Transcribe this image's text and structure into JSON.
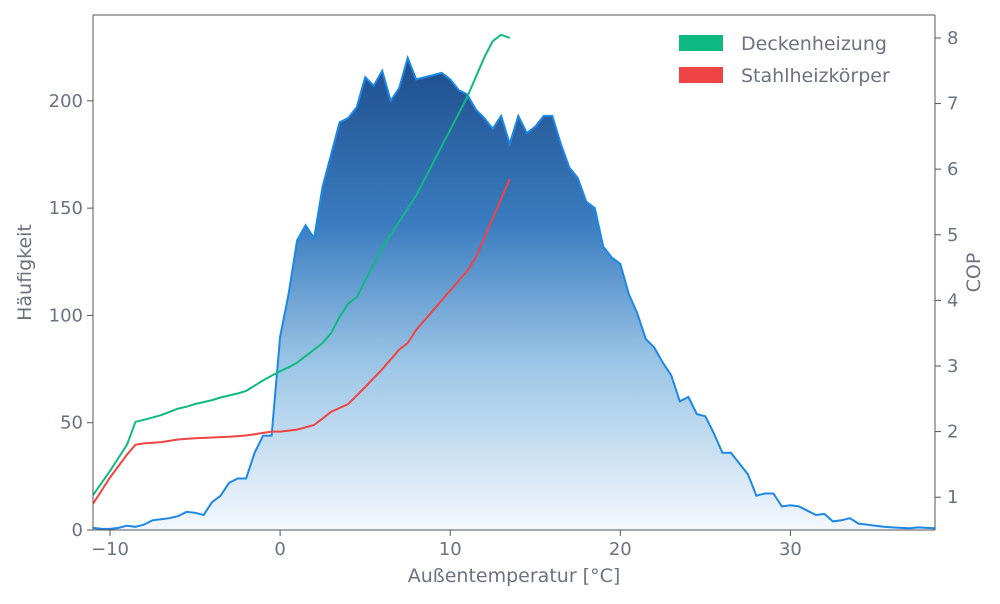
{
  "chart_data": {
    "type": "area",
    "title": "",
    "xlabel": "Außentemperatur [°C]",
    "ylabel_left": "Häufigkeit",
    "ylabel_right": "COP",
    "xlim": [
      -11,
      38.5
    ],
    "ylim_left": [
      0,
      240
    ],
    "ylim_right": [
      0.5,
      8.35
    ],
    "x_ticks": [
      -10,
      0,
      10,
      20,
      30
    ],
    "y_ticks_left": [
      0,
      50,
      100,
      150,
      200
    ],
    "y_ticks_right": [
      1,
      2,
      3,
      4,
      5,
      6,
      7,
      8
    ],
    "grid": false,
    "legend_position": "top-right",
    "colors": {
      "histogram_line": "#1e88e5",
      "histogram_fill_top": "#1f4e8c",
      "histogram_fill_bottom": "#f4f8fd",
      "deckenheizung": "#10b981",
      "stahlheizkoerper": "#ef4444",
      "axis": "#555555",
      "text": "#6b7280"
    },
    "histogram": {
      "axis": "left",
      "x": [
        -11,
        -10.5,
        -10,
        -9.5,
        -9,
        -8.5,
        -8,
        -7.5,
        -7,
        -6.5,
        -6,
        -5.5,
        -5,
        -4.5,
        -4,
        -3.5,
        -3,
        -2.5,
        -2,
        -1.5,
        -1,
        -0.5,
        0,
        0.5,
        1,
        1.5,
        2,
        2.5,
        3,
        3.5,
        4,
        4.5,
        5,
        5.5,
        6,
        6.5,
        7,
        7.5,
        8,
        8.5,
        9,
        9.5,
        10,
        10.5,
        11,
        11.5,
        12,
        12.5,
        13,
        13.5,
        14,
        14.5,
        15,
        15.5,
        16,
        16.5,
        17,
        17.5,
        18,
        18.5,
        19,
        19.5,
        20,
        20.5,
        21,
        21.5,
        22,
        22.5,
        23,
        23.5,
        24,
        24.5,
        25,
        25.5,
        26,
        26.5,
        27,
        27.5,
        28,
        28.5,
        29,
        29.5,
        30,
        30.5,
        31,
        31.5,
        32,
        32.5,
        33,
        33.5,
        34,
        34.5,
        35,
        35.5,
        36,
        36.5,
        37,
        37.5,
        38,
        38.5
      ],
      "values": [
        1,
        0.5,
        0.5,
        1,
        2,
        1.5,
        2.5,
        4.5,
        5,
        5.5,
        6.5,
        8.5,
        8,
        7,
        13,
        16,
        22,
        24,
        24,
        36,
        44,
        44,
        90,
        110,
        135,
        142,
        136,
        160,
        175,
        190,
        192,
        197,
        211,
        207,
        214,
        200,
        206,
        220,
        210,
        211,
        212,
        213,
        210,
        205,
        203,
        196,
        192,
        187,
        193,
        180,
        193,
        185,
        188,
        193,
        193,
        180,
        169,
        164,
        153,
        150,
        132,
        127,
        124,
        110,
        101,
        89,
        85,
        78,
        72,
        60,
        62,
        54,
        53,
        45,
        36,
        36,
        31,
        26,
        16,
        17,
        17,
        11,
        11.5,
        11,
        9,
        7,
        7.5,
        4,
        4.5,
        5.5,
        3,
        2.5,
        2,
        1.5,
        1.2,
        1,
        0.8,
        1.2,
        1,
        0.8
      ]
    },
    "series": [
      {
        "name": "Deckenheizung",
        "axis": "right",
        "x": [
          -11,
          -10,
          -9,
          -8.5,
          -8,
          -7,
          -6.5,
          -6,
          -5.5,
          -5,
          -4.5,
          -4,
          -3.5,
          -3,
          -2.5,
          -2,
          -1.5,
          -1,
          -0.5,
          0,
          0.5,
          1,
          1.5,
          2,
          2.5,
          3,
          3.5,
          4,
          4.5,
          5,
          5.5,
          6,
          6.5,
          7,
          7.5,
          8,
          8.5,
          9,
          9.5,
          10,
          10.5,
          11,
          11.5,
          12,
          12.5,
          13,
          13.5
        ],
        "values": [
          1.03,
          1.4,
          1.8,
          2.15,
          2.18,
          2.25,
          2.3,
          2.35,
          2.38,
          2.42,
          2.45,
          2.48,
          2.52,
          2.55,
          2.58,
          2.62,
          2.7,
          2.78,
          2.85,
          2.92,
          2.98,
          3.05,
          3.15,
          3.25,
          3.35,
          3.5,
          3.75,
          3.95,
          4.05,
          4.3,
          4.55,
          4.8,
          5.0,
          5.2,
          5.4,
          5.6,
          5.85,
          6.1,
          6.35,
          6.6,
          6.85,
          7.1,
          7.4,
          7.7,
          7.95,
          8.05,
          8.0
        ]
      },
      {
        "name": "Stahlheizkörper",
        "axis": "right",
        "x": [
          -11,
          -10,
          -9,
          -8.5,
          -8,
          -7,
          -6,
          -5,
          -4,
          -3,
          -2,
          -1.5,
          -1,
          -0.5,
          0,
          1,
          2,
          3,
          4,
          5,
          6,
          7,
          7.5,
          8,
          9,
          10,
          11,
          11.5,
          12,
          12.5,
          13,
          13.5
        ],
        "values": [
          0.9,
          1.3,
          1.65,
          1.8,
          1.82,
          1.84,
          1.88,
          1.9,
          1.91,
          1.92,
          1.94,
          1.96,
          1.98,
          2.0,
          2.0,
          2.03,
          2.1,
          2.3,
          2.42,
          2.68,
          2.95,
          3.25,
          3.35,
          3.55,
          3.85,
          4.15,
          4.45,
          4.65,
          4.95,
          5.25,
          5.55,
          5.85
        ]
      }
    ]
  }
}
